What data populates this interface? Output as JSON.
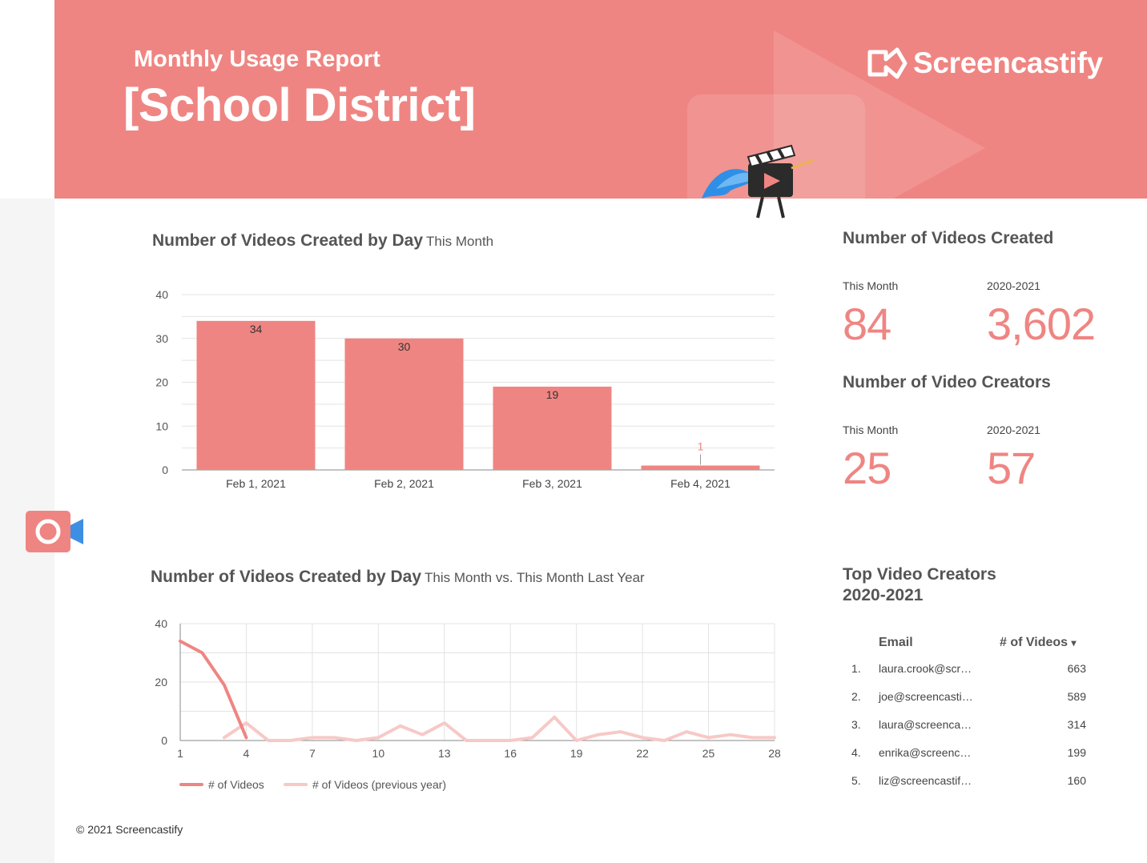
{
  "header": {
    "subtitle": "Monthly Usage Report",
    "title": "[School District]",
    "brand": "Screencastify"
  },
  "colors": {
    "accent": "#ef8582",
    "accent_light": "#f6c9c7",
    "header_bg": "#ef8582",
    "camera_blue": "#3d8fe3"
  },
  "icons": [
    "screencastify-logo-icon",
    "video-camera-icon",
    "superhero-clapper-mascot-icon"
  ],
  "bar_section": {
    "title": "Number of Videos Created by Day",
    "subtitle": "This Month"
  },
  "line_section": {
    "title": "Number of Videos Created by Day",
    "subtitle": "This Month vs. This Month Last Year"
  },
  "chart_data": [
    {
      "type": "bar",
      "categories": [
        "Feb 1, 2021",
        "Feb 2, 2021",
        "Feb 3, 2021",
        "Feb 4, 2021"
      ],
      "values": [
        34,
        30,
        19,
        1
      ],
      "ylim": [
        0,
        40
      ],
      "yticks": [
        0,
        10,
        20,
        30,
        40
      ],
      "grid": true,
      "data_labels": true
    },
    {
      "type": "line",
      "x": [
        1,
        2,
        3,
        4,
        5,
        6,
        7,
        8,
        9,
        10,
        11,
        12,
        13,
        14,
        15,
        16,
        17,
        18,
        19,
        20,
        21,
        22,
        23,
        24,
        25,
        26,
        27,
        28
      ],
      "xticks": [
        1,
        4,
        7,
        10,
        13,
        16,
        19,
        22,
        25,
        28
      ],
      "ylim": [
        0,
        40
      ],
      "yticks": [
        0,
        20,
        40
      ],
      "grid": true,
      "legend": "bottom-left",
      "series": [
        {
          "name": "# of Videos",
          "x": [
            1,
            2,
            3,
            4
          ],
          "values": [
            34,
            30,
            19,
            1
          ]
        },
        {
          "name": "# of Videos (previous year)",
          "x": [
            3,
            4,
            5,
            6,
            7,
            8,
            9,
            10,
            11,
            12,
            13,
            14,
            15,
            16,
            17,
            18,
            19,
            20,
            21,
            22,
            23,
            24,
            25,
            26,
            27,
            28
          ],
          "values": [
            1,
            6,
            0,
            0,
            1,
            1,
            0,
            1,
            5,
            2,
            6,
            0,
            0,
            0,
            1,
            8,
            0,
            2,
            3,
            1,
            0,
            3,
            1,
            2,
            1,
            1
          ]
        }
      ]
    }
  ],
  "videos_created": {
    "title": "Number of Videos Created",
    "this_month_label": "This Month",
    "this_month_value": "84",
    "year_label": "2020-2021",
    "year_value": "3,602"
  },
  "video_creators": {
    "title": "Number of Video Creators",
    "this_month_label": "This Month",
    "this_month_value": "25",
    "year_label": "2020-2021",
    "year_value": "57"
  },
  "top_creators": {
    "title_line1": "Top Video Creators",
    "title_line2": "2020-2021",
    "col_email": "Email",
    "col_videos": "# of Videos",
    "sort_indicator": "▾",
    "rows": [
      {
        "rank": "1.",
        "email": "laura.crook@scr…",
        "count": "663"
      },
      {
        "rank": "2.",
        "email": "joe@screencasti…",
        "count": "589"
      },
      {
        "rank": "3.",
        "email": "laura@screenca…",
        "count": "314"
      },
      {
        "rank": "4.",
        "email": "enrika@screenc…",
        "count": "199"
      },
      {
        "rank": "5.",
        "email": "liz@screencastif…",
        "count": "160"
      }
    ]
  },
  "footer": {
    "copyright": "© 2021 Screencastify"
  }
}
